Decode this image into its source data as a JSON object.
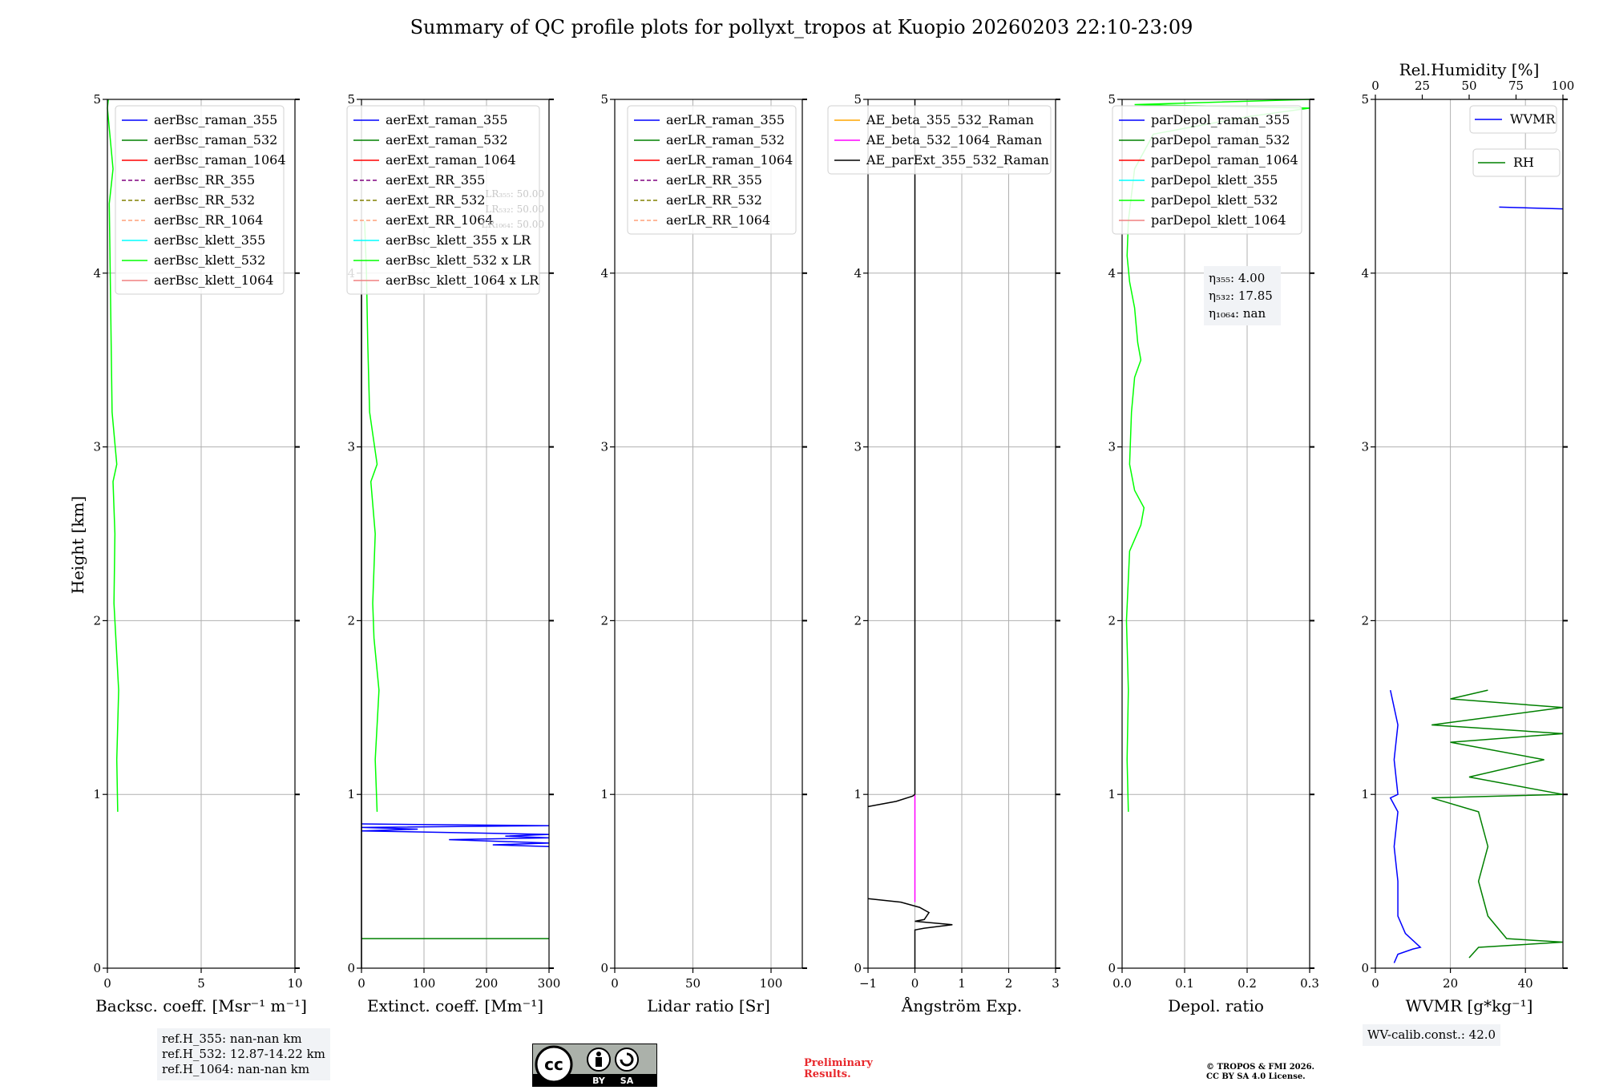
{
  "title": "Summary of QC profile plots for pollyxt_tropos at Kuopio 20260203 22:10-23:09",
  "ylabel": "Height [km]",
  "ref_heights": [
    "ref.H_355: nan-nan km",
    "ref.H_532: 12.87-14.22 km",
    "ref.H_1064: nan-nan km"
  ],
  "wv_calib": "WV-calib.const.: 42.0",
  "preliminary": [
    "Preliminary",
    "Results."
  ],
  "copyright": [
    "© TROPOS & FMI 2026.",
    "CC BY SA 4.0 License."
  ],
  "license_badge": {
    "by": "BY",
    "sa": "SA"
  },
  "colors": {
    "blue": "#0000ff",
    "green": "#008000",
    "red": "#ff0000",
    "purple": "#800080",
    "olive": "#808000",
    "salmon": "#ffa07a",
    "cyan": "#00ffff",
    "lime": "#00ff00",
    "lightcoral": "#f08080",
    "orange": "#ffa500",
    "magenta": "#ff00ff",
    "black": "#000000",
    "grid": "#b0b0b0"
  },
  "chart_data": [
    {
      "type": "line",
      "xlabel": "Backsc. coeff. [Msr⁻¹ m⁻¹]",
      "ylabel": "Height [km]",
      "xlim": [
        0,
        10
      ],
      "ylim": [
        0,
        5
      ],
      "xticks": [
        0,
        5,
        10
      ],
      "xtick_labels": [
        "0",
        "5",
        "10"
      ],
      "yticks": [
        0,
        1,
        2,
        3,
        4,
        5
      ],
      "ytick_labels": [
        "0",
        "1",
        "2",
        "3",
        "4",
        "5"
      ],
      "legend": [
        {
          "label": "aerBsc_raman_355",
          "color": "blue",
          "dash": false
        },
        {
          "label": "aerBsc_raman_532",
          "color": "green",
          "dash": false
        },
        {
          "label": "aerBsc_raman_1064",
          "color": "red",
          "dash": false
        },
        {
          "label": "aerBsc_RR_355",
          "color": "purple",
          "dash": true
        },
        {
          "label": "aerBsc_RR_532",
          "color": "olive",
          "dash": true
        },
        {
          "label": "aerBsc_RR_1064",
          "color": "salmon",
          "dash": true
        },
        {
          "label": "aerBsc_klett_355",
          "color": "cyan",
          "dash": false
        },
        {
          "label": "aerBsc_klett_532",
          "color": "lime",
          "dash": false
        },
        {
          "label": "aerBsc_klett_1064",
          "color": "lightcoral",
          "dash": false
        }
      ],
      "series": [
        {
          "name": "aerBsc_klett_532",
          "color": "lime",
          "points": [
            [
              0.55,
              0.9
            ],
            [
              0.5,
              1.2
            ],
            [
              0.6,
              1.6
            ],
            [
              0.45,
              1.9
            ],
            [
              0.35,
              2.1
            ],
            [
              0.4,
              2.5
            ],
            [
              0.3,
              2.8
            ],
            [
              0.5,
              2.9
            ],
            [
              0.25,
              3.2
            ],
            [
              0.2,
              3.6
            ],
            [
              0.15,
              4.0
            ],
            [
              0.1,
              4.4
            ],
            [
              0.3,
              4.6
            ],
            [
              0.0,
              4.95
            ],
            [
              0.05,
              5.0
            ]
          ]
        }
      ]
    },
    {
      "type": "line",
      "xlabel": "Extinct. coeff. [Mm⁻¹]",
      "xlim": [
        0,
        300
      ],
      "ylim": [
        0,
        5
      ],
      "xticks": [
        0,
        100,
        200,
        300
      ],
      "xtick_labels": [
        "0",
        "100",
        "200",
        "300"
      ],
      "yticks": [
        0,
        1,
        2,
        3,
        4,
        5
      ],
      "ytick_labels": [
        "0",
        "1",
        "2",
        "3",
        "4",
        "5"
      ],
      "lr_text": [
        "LR₃₅₅: 50.00",
        "LR₅₃₂: 50.00",
        "LR₁₀₆₄: 50.00"
      ],
      "legend": [
        {
          "label": "aerExt_raman_355",
          "color": "blue",
          "dash": false
        },
        {
          "label": "aerExt_raman_532",
          "color": "green",
          "dash": false
        },
        {
          "label": "aerExt_raman_1064",
          "color": "red",
          "dash": false
        },
        {
          "label": "aerExt_RR_355",
          "color": "purple",
          "dash": true
        },
        {
          "label": "aerExt_RR_532",
          "color": "olive",
          "dash": true
        },
        {
          "label": "aerExt_RR_1064",
          "color": "salmon",
          "dash": true
        },
        {
          "label": "aerBsc_klett_355 x LR",
          "color": "cyan",
          "dash": false
        },
        {
          "label": "aerBsc_klett_532 x LR",
          "color": "lime",
          "dash": false
        },
        {
          "label": "aerBsc_klett_1064 x LR",
          "color": "lightcoral",
          "dash": false
        }
      ],
      "series": [
        {
          "name": "aerBsc_klett_532 x LR",
          "color": "lime",
          "points": [
            [
              25,
              0.9
            ],
            [
              22,
              1.2
            ],
            [
              28,
              1.6
            ],
            [
              20,
              1.9
            ],
            [
              18,
              2.1
            ],
            [
              22,
              2.5
            ],
            [
              15,
              2.8
            ],
            [
              25,
              2.9
            ],
            [
              13,
              3.2
            ],
            [
              10,
              3.6
            ],
            [
              8,
              4.0
            ],
            [
              5,
              4.3
            ]
          ]
        },
        {
          "name": "aerExt_raman_355",
          "color": "blue",
          "points": [
            [
              300,
              0.7
            ],
            [
              210,
              0.71
            ],
            [
              300,
              0.72
            ],
            [
              140,
              0.74
            ],
            [
              300,
              0.75
            ],
            [
              230,
              0.76
            ],
            [
              300,
              0.77
            ],
            [
              0,
              0.79
            ],
            [
              90,
              0.8
            ],
            [
              0,
              0.81
            ],
            [
              300,
              0.82
            ],
            [
              0,
              0.83
            ]
          ]
        },
        {
          "name": "aerExt_raman_532",
          "color": "green",
          "points": [
            [
              0,
              0.17
            ],
            [
              300,
              0.17
            ]
          ]
        },
        {
          "name": "aerExt_raman_355_low",
          "color": "black",
          "points": [
            [
              0,
              0
            ],
            [
              0,
              4.2
            ]
          ]
        }
      ]
    },
    {
      "type": "line",
      "xlabel": "Lidar ratio [Sr]",
      "xlim": [
        0,
        120
      ],
      "ylim": [
        0,
        5
      ],
      "xticks": [
        0,
        50,
        100
      ],
      "xtick_labels": [
        "0",
        "50",
        "100"
      ],
      "yticks": [
        0,
        1,
        2,
        3,
        4,
        5
      ],
      "ytick_labels": [
        "0",
        "1",
        "2",
        "3",
        "4",
        "5"
      ],
      "legend": [
        {
          "label": "aerLR_raman_355",
          "color": "blue",
          "dash": false
        },
        {
          "label": "aerLR_raman_532",
          "color": "green",
          "dash": false
        },
        {
          "label": "aerLR_raman_1064",
          "color": "red",
          "dash": false
        },
        {
          "label": "aerLR_RR_355",
          "color": "purple",
          "dash": true
        },
        {
          "label": "aerLR_RR_532",
          "color": "olive",
          "dash": true
        },
        {
          "label": "aerLR_RR_1064",
          "color": "salmon",
          "dash": true
        }
      ],
      "series": []
    },
    {
      "type": "line",
      "xlabel": "Ångström Exp.",
      "xlim": [
        -1,
        3
      ],
      "ylim": [
        0,
        5
      ],
      "xticks": [
        -1,
        0,
        1,
        2,
        3
      ],
      "xtick_labels": [
        "−1",
        "0",
        "1",
        "2",
        "3"
      ],
      "yticks": [
        0,
        1,
        2,
        3,
        4,
        5
      ],
      "ytick_labels": [
        "0",
        "1",
        "2",
        "3",
        "4",
        "5"
      ],
      "legend": [
        {
          "label": "AE_beta_355_532_Raman",
          "color": "orange",
          "dash": false
        },
        {
          "label": "AE_beta_532_1064_Raman",
          "color": "magenta",
          "dash": false
        },
        {
          "label": "AE_parExt_355_532_Raman",
          "color": "black",
          "dash": false
        }
      ],
      "series": [
        {
          "name": "AE_beta_532_1064_Raman",
          "color": "magenta",
          "points": [
            [
              0,
              0.38
            ],
            [
              0,
              1.0
            ]
          ]
        },
        {
          "name": "AE_parExt_355_532_Raman",
          "color": "black",
          "points": [
            [
              0,
              1.0
            ],
            [
              0,
              5.0
            ]
          ]
        },
        {
          "name": "AE_parExt_355_532_Raman_b",
          "color": "black",
          "points": [
            [
              -1,
              0.93
            ],
            [
              -0.4,
              0.96
            ],
            [
              -0.05,
              0.99
            ],
            [
              0,
              1.0
            ]
          ]
        },
        {
          "name": "AE_parExt_355_532_Raman_c",
          "color": "black",
          "points": [
            [
              -1,
              0.4
            ],
            [
              -0.3,
              0.38
            ],
            [
              0.1,
              0.35
            ],
            [
              0.3,
              0.32
            ],
            [
              0.2,
              0.28
            ],
            [
              0.0,
              0.27
            ],
            [
              0.8,
              0.25
            ],
            [
              0.2,
              0.23
            ],
            [
              0,
              0.22
            ],
            [
              0,
              0.0
            ]
          ]
        }
      ]
    },
    {
      "type": "line",
      "xlabel": "Depol. ratio",
      "xlim": [
        0,
        0.3
      ],
      "ylim": [
        0,
        5
      ],
      "xticks": [
        0,
        0.1,
        0.2,
        0.3
      ],
      "xtick_labels": [
        "0.0",
        "0.1",
        "0.2",
        "0.3"
      ],
      "yticks": [
        0,
        1,
        2,
        3,
        4,
        5
      ],
      "ytick_labels": [
        "0",
        "1",
        "2",
        "3",
        "4",
        "5"
      ],
      "eta_text": [
        "η₃₅₅: 4.00",
        "η₅₃₂: 17.85",
        "η₁₀₆₄: nan"
      ],
      "legend": [
        {
          "label": "parDepol_raman_355",
          "color": "blue",
          "dash": false
        },
        {
          "label": "parDepol_raman_532",
          "color": "green",
          "dash": false
        },
        {
          "label": "parDepol_raman_1064",
          "color": "red",
          "dash": false
        },
        {
          "label": "parDepol_klett_355",
          "color": "cyan",
          "dash": false
        },
        {
          "label": "parDepol_klett_532",
          "color": "lime",
          "dash": false
        },
        {
          "label": "parDepol_klett_1064",
          "color": "lightcoral",
          "dash": false
        }
      ],
      "series": [
        {
          "name": "parDepol_klett_532",
          "color": "lime",
          "points": [
            [
              0.01,
              0.9
            ],
            [
              0.008,
              1.2
            ],
            [
              0.01,
              1.6
            ],
            [
              0.007,
              2.0
            ],
            [
              0.012,
              2.4
            ],
            [
              0.03,
              2.55
            ],
            [
              0.035,
              2.65
            ],
            [
              0.02,
              2.75
            ],
            [
              0.012,
              2.9
            ],
            [
              0.015,
              3.2
            ],
            [
              0.02,
              3.4
            ],
            [
              0.03,
              3.5
            ],
            [
              0.025,
              3.6
            ],
            [
              0.02,
              3.8
            ],
            [
              0.012,
              3.95
            ],
            [
              0.008,
              4.1
            ],
            [
              0.01,
              4.3
            ],
            [
              0.02,
              4.6
            ],
            [
              0.05,
              4.8
            ],
            [
              0.2,
              4.9
            ],
            [
              0.3,
              4.95
            ],
            [
              0.02,
              4.97
            ],
            [
              0.3,
              5.0
            ]
          ]
        }
      ]
    },
    {
      "type": "line",
      "xlabel": "WVMR [g*kg⁻¹]",
      "xlim": [
        0,
        50
      ],
      "ylim": [
        0,
        5
      ],
      "xticks": [
        0,
        20,
        40
      ],
      "xtick_labels": [
        "0",
        "20",
        "40"
      ],
      "yticks": [
        0,
        1,
        2,
        3,
        4,
        5
      ],
      "ytick_labels": [
        "0",
        "1",
        "2",
        "3",
        "4",
        "5"
      ],
      "top_axis_label": "Rel.Humidity [%]",
      "top_xlim": [
        0,
        100
      ],
      "top_xticks": [
        0,
        25,
        50,
        75,
        100
      ],
      "top_xtick_labels": [
        "0",
        "25",
        "50",
        "75",
        "100"
      ],
      "legend": [
        {
          "label": "WVMR",
          "color": "blue",
          "dash": false
        },
        {
          "label": "RH",
          "color": "green",
          "dash": false
        }
      ],
      "series": [
        {
          "name": "WVMR",
          "color": "blue",
          "axis": "bottom",
          "points": [
            [
              5,
              0.03
            ],
            [
              6,
              0.08
            ],
            [
              10,
              0.11
            ],
            [
              12,
              0.12
            ],
            [
              8,
              0.2
            ],
            [
              6,
              0.3
            ],
            [
              6,
              0.5
            ],
            [
              5,
              0.7
            ],
            [
              6,
              0.9
            ],
            [
              4,
              0.98
            ],
            [
              6,
              1.0
            ],
            [
              5,
              1.2
            ],
            [
              6,
              1.4
            ],
            [
              5,
              1.5
            ],
            [
              4,
              1.6
            ]
          ]
        },
        {
          "name": "WVMR_high",
          "color": "blue",
          "axis": "bottom",
          "points": [
            [
              33,
              4.38
            ],
            [
              50,
              4.37
            ]
          ]
        },
        {
          "name": "RH",
          "color": "green",
          "axis": "top",
          "points": [
            [
              50,
              0.06
            ],
            [
              55,
              0.12
            ],
            [
              100,
              0.15
            ],
            [
              70,
              0.17
            ],
            [
              60,
              0.3
            ],
            [
              55,
              0.5
            ],
            [
              60,
              0.7
            ],
            [
              55,
              0.9
            ],
            [
              30,
              0.98
            ],
            [
              100,
              1.0
            ],
            [
              50,
              1.1
            ],
            [
              90,
              1.2
            ],
            [
              40,
              1.3
            ],
            [
              100,
              1.35
            ],
            [
              30,
              1.4
            ],
            [
              100,
              1.5
            ],
            [
              40,
              1.55
            ],
            [
              60,
              1.6
            ]
          ]
        }
      ]
    }
  ]
}
